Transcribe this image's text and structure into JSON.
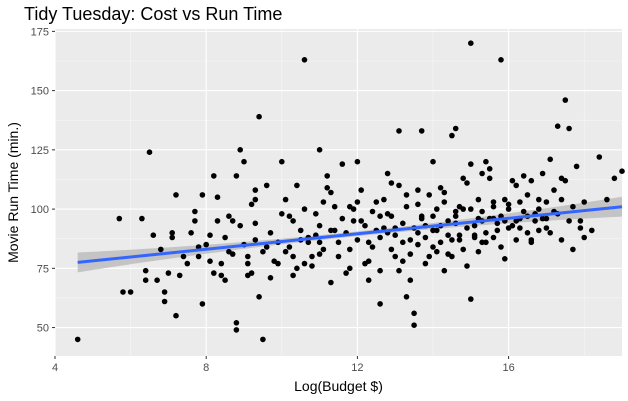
{
  "chart_data": {
    "type": "scatter",
    "title": "Tidy Tuesday: Cost vs Run Time",
    "xlabel": "Log(Budget $)",
    "ylabel": "Movie Run Time (min.)",
    "xlim": [
      4.0,
      19.0
    ],
    "ylim": [
      38,
      176
    ],
    "x_ticks": [
      4,
      8,
      12,
      16
    ],
    "x_tick_labels": [
      "4",
      "8",
      "12",
      "16"
    ],
    "y_ticks": [
      50,
      75,
      100,
      125,
      150,
      175
    ],
    "y_tick_labels": [
      "50",
      "75",
      "100",
      "125",
      "150",
      "175"
    ],
    "grid": true,
    "background": "#ebebeb",
    "point_color": "#000000",
    "trend": {
      "method": "linear",
      "x": [
        4.6,
        19.0
      ],
      "y": [
        77.5,
        101.0
      ],
      "color": "#3366ff",
      "band_color": "#bdbdbd"
    },
    "points": [
      [
        4.6,
        45
      ],
      [
        5.7,
        96
      ],
      [
        5.8,
        65
      ],
      [
        6.0,
        65
      ],
      [
        6.3,
        96
      ],
      [
        6.4,
        74
      ],
      [
        6.4,
        70
      ],
      [
        6.5,
        124
      ],
      [
        6.6,
        89
      ],
      [
        6.7,
        70
      ],
      [
        6.9,
        61
      ],
      [
        6.9,
        65
      ],
      [
        7.0,
        73
      ],
      [
        7.1,
        90
      ],
      [
        7.1,
        88
      ],
      [
        7.2,
        106
      ],
      [
        7.2,
        55
      ],
      [
        7.3,
        72
      ],
      [
        7.4,
        80
      ],
      [
        7.5,
        77
      ],
      [
        7.6,
        90
      ],
      [
        7.7,
        99
      ],
      [
        7.8,
        80
      ],
      [
        7.9,
        106
      ],
      [
        7.9,
        60
      ],
      [
        8.0,
        85
      ],
      [
        8.1,
        78
      ],
      [
        8.1,
        89
      ],
      [
        8.2,
        114
      ],
      [
        8.3,
        95
      ],
      [
        8.3,
        105
      ],
      [
        8.4,
        72
      ],
      [
        8.5,
        88
      ],
      [
        8.5,
        70
      ],
      [
        8.6,
        97
      ],
      [
        8.7,
        95
      ],
      [
        8.7,
        81
      ],
      [
        8.8,
        114
      ],
      [
        8.8,
        52
      ],
      [
        8.8,
        49
      ],
      [
        8.9,
        125
      ],
      [
        9.0,
        120
      ],
      [
        9.0,
        85
      ],
      [
        9.1,
        77
      ],
      [
        9.1,
        72
      ],
      [
        9.2,
        102
      ],
      [
        9.3,
        108
      ],
      [
        9.3,
        94
      ],
      [
        9.3,
        87
      ],
      [
        9.4,
        139
      ],
      [
        9.5,
        45
      ],
      [
        9.5,
        82
      ],
      [
        9.6,
        110
      ],
      [
        9.7,
        90
      ],
      [
        9.8,
        78
      ],
      [
        9.9,
        77
      ],
      [
        10.0,
        120
      ],
      [
        10.1,
        104
      ],
      [
        10.2,
        84
      ],
      [
        10.2,
        97
      ],
      [
        10.3,
        95
      ],
      [
        10.3,
        72
      ],
      [
        10.4,
        110
      ],
      [
        10.5,
        87
      ],
      [
        10.6,
        77
      ],
      [
        10.6,
        163
      ],
      [
        10.7,
        88
      ],
      [
        10.8,
        76
      ],
      [
        10.9,
        89
      ],
      [
        11.0,
        125
      ],
      [
        11.0,
        93
      ],
      [
        11.0,
        81
      ],
      [
        11.1,
        103
      ],
      [
        11.2,
        109
      ],
      [
        11.3,
        91
      ],
      [
        11.3,
        69
      ],
      [
        11.4,
        101
      ],
      [
        11.5,
        86
      ],
      [
        11.6,
        96
      ],
      [
        11.6,
        119
      ],
      [
        11.7,
        90
      ],
      [
        11.8,
        83
      ],
      [
        11.8,
        75
      ],
      [
        11.9,
        100
      ],
      [
        12.0,
        87
      ],
      [
        12.0,
        120
      ],
      [
        12.1,
        108
      ],
      [
        12.1,
        95
      ],
      [
        12.2,
        77
      ],
      [
        12.3,
        86
      ],
      [
        12.3,
        78
      ],
      [
        12.4,
        99
      ],
      [
        12.5,
        91
      ],
      [
        12.5,
        103
      ],
      [
        12.6,
        74
      ],
      [
        12.6,
        88
      ],
      [
        12.7,
        92
      ],
      [
        12.8,
        115
      ],
      [
        12.8,
        98
      ],
      [
        12.9,
        83
      ],
      [
        12.9,
        97
      ],
      [
        13.0,
        80
      ],
      [
        13.0,
        89
      ],
      [
        13.1,
        133
      ],
      [
        13.1,
        110
      ],
      [
        13.2,
        94
      ],
      [
        13.2,
        78
      ],
      [
        13.3,
        101
      ],
      [
        13.3,
        63
      ],
      [
        13.4,
        87
      ],
      [
        13.5,
        51
      ],
      [
        13.5,
        56
      ],
      [
        13.5,
        92
      ],
      [
        13.6,
        102
      ],
      [
        13.6,
        85
      ],
      [
        13.7,
        96
      ],
      [
        13.7,
        133
      ],
      [
        13.8,
        77
      ],
      [
        13.8,
        88
      ],
      [
        13.9,
        106
      ],
      [
        14.0,
        91
      ],
      [
        14.0,
        97
      ],
      [
        14.0,
        120
      ],
      [
        14.1,
        82
      ],
      [
        14.1,
        100
      ],
      [
        14.2,
        93
      ],
      [
        14.2,
        86
      ],
      [
        14.3,
        74
      ],
      [
        14.3,
        107
      ],
      [
        14.4,
        89
      ],
      [
        14.4,
        95
      ],
      [
        14.5,
        131
      ],
      [
        14.5,
        80
      ],
      [
        14.6,
        97
      ],
      [
        14.6,
        134
      ],
      [
        14.7,
        101
      ],
      [
        14.7,
        89
      ],
      [
        14.8,
        83
      ],
      [
        14.8,
        113
      ],
      [
        14.9,
        92
      ],
      [
        15.0,
        100
      ],
      [
        15.0,
        62
      ],
      [
        15.0,
        170
      ],
      [
        15.1,
        89
      ],
      [
        15.1,
        93
      ],
      [
        15.2,
        96
      ],
      [
        15.2,
        104
      ],
      [
        15.3,
        86
      ],
      [
        15.3,
        99
      ],
      [
        15.4,
        120
      ],
      [
        15.4,
        90
      ],
      [
        15.5,
        117
      ],
      [
        15.5,
        96
      ],
      [
        15.6,
        101
      ],
      [
        15.6,
        88
      ],
      [
        15.7,
        94
      ],
      [
        15.8,
        163
      ],
      [
        15.8,
        97
      ],
      [
        15.9,
        104
      ],
      [
        15.9,
        79
      ],
      [
        16.0,
        92
      ],
      [
        16.0,
        100
      ],
      [
        16.1,
        112
      ],
      [
        16.2,
        95
      ],
      [
        16.2,
        87
      ],
      [
        16.3,
        103
      ],
      [
        16.3,
        92
      ],
      [
        16.4,
        99
      ],
      [
        16.5,
        97
      ],
      [
        16.5,
        106
      ],
      [
        16.6,
        87
      ],
      [
        16.6,
        112
      ],
      [
        16.7,
        95
      ],
      [
        16.8,
        100
      ],
      [
        16.8,
        91
      ],
      [
        16.9,
        115
      ],
      [
        17.0,
        103
      ],
      [
        17.0,
        96
      ],
      [
        17.1,
        121
      ],
      [
        17.1,
        90
      ],
      [
        17.2,
        108
      ],
      [
        17.3,
        135
      ],
      [
        17.3,
        98
      ],
      [
        17.4,
        104
      ],
      [
        17.4,
        87
      ],
      [
        17.5,
        146
      ],
      [
        17.5,
        112
      ],
      [
        17.6,
        95
      ],
      [
        17.7,
        101
      ],
      [
        17.7,
        83
      ],
      [
        17.8,
        118
      ],
      [
        17.9,
        92
      ],
      [
        18.0,
        103
      ],
      [
        18.0,
        88
      ],
      [
        18.2,
        91
      ],
      [
        18.4,
        122
      ],
      [
        18.6,
        104
      ],
      [
        18.8,
        113
      ],
      [
        19.0,
        116
      ],
      [
        17.6,
        134
      ],
      [
        16.4,
        114
      ],
      [
        15.6,
        96
      ],
      [
        14.9,
        76
      ],
      [
        13.4,
        70
      ],
      [
        12.6,
        60
      ],
      [
        11.3,
        107
      ],
      [
        10.8,
        80
      ],
      [
        10.1,
        82
      ],
      [
        9.7,
        71
      ],
      [
        9.4,
        63
      ],
      [
        8.6,
        82
      ],
      [
        7.8,
        84
      ],
      [
        6.8,
        83
      ],
      [
        9.9,
        86
      ],
      [
        10.5,
        91
      ],
      [
        11.9,
        95
      ],
      [
        12.2,
        93
      ],
      [
        13.0,
        92
      ],
      [
        13.8,
        93
      ],
      [
        14.6,
        94
      ],
      [
        15.3,
        95
      ],
      [
        15.9,
        95
      ],
      [
        16.7,
        98
      ],
      [
        17.2,
        99
      ],
      [
        12.4,
        84
      ],
      [
        12.8,
        90
      ],
      [
        13.2,
        86
      ],
      [
        13.6,
        90
      ],
      [
        14.1,
        91
      ],
      [
        14.5,
        87
      ],
      [
        15.1,
        88
      ],
      [
        15.7,
        91
      ],
      [
        16.1,
        93
      ],
      [
        16.9,
        96
      ],
      [
        11.5,
        80
      ],
      [
        11.1,
        83
      ],
      [
        10.7,
        86
      ],
      [
        10.3,
        80
      ],
      [
        9.6,
        84
      ],
      [
        9.1,
        80
      ],
      [
        8.4,
        77
      ],
      [
        12.0,
        103
      ],
      [
        12.7,
        104
      ],
      [
        13.3,
        106
      ],
      [
        14.2,
        109
      ],
      [
        14.9,
        111
      ],
      [
        15.5,
        113
      ],
      [
        16.2,
        110
      ],
      [
        11.4,
        91
      ],
      [
        10.9,
        98
      ],
      [
        13.1,
        74
      ],
      [
        13.9,
        80
      ],
      [
        14.4,
        81
      ],
      [
        15.2,
        82
      ],
      [
        15.8,
        84
      ],
      [
        16.6,
        86
      ],
      [
        12.3,
        70
      ],
      [
        11.7,
        73
      ],
      [
        10.4,
        75
      ],
      [
        9.2,
        73
      ],
      [
        15.0,
        119
      ],
      [
        15.3,
        115
      ],
      [
        12.9,
        111
      ],
      [
        13.6,
        108
      ],
      [
        14.3,
        103
      ],
      [
        14.8,
        100
      ],
      [
        16.0,
        102
      ],
      [
        16.8,
        104
      ],
      [
        17.4,
        113
      ],
      [
        11.2,
        114
      ],
      [
        10.0,
        98
      ],
      [
        9.3,
        104
      ],
      [
        8.9,
        93
      ],
      [
        8.2,
        73
      ],
      [
        7.7,
        95
      ],
      [
        13.4,
        81
      ],
      [
        14.0,
        84
      ],
      [
        14.7,
        87
      ],
      [
        15.4,
        86
      ],
      [
        16.5,
        90
      ],
      [
        12.6,
        97
      ],
      [
        11.8,
        101
      ],
      [
        11.0,
        86
      ],
      [
        10.6,
        100
      ],
      [
        13.7,
        97
      ],
      [
        14.6,
        99
      ],
      [
        15.6,
        103
      ],
      [
        16.3,
        96
      ],
      [
        17.0,
        92
      ],
      [
        17.9,
        95
      ]
    ]
  }
}
